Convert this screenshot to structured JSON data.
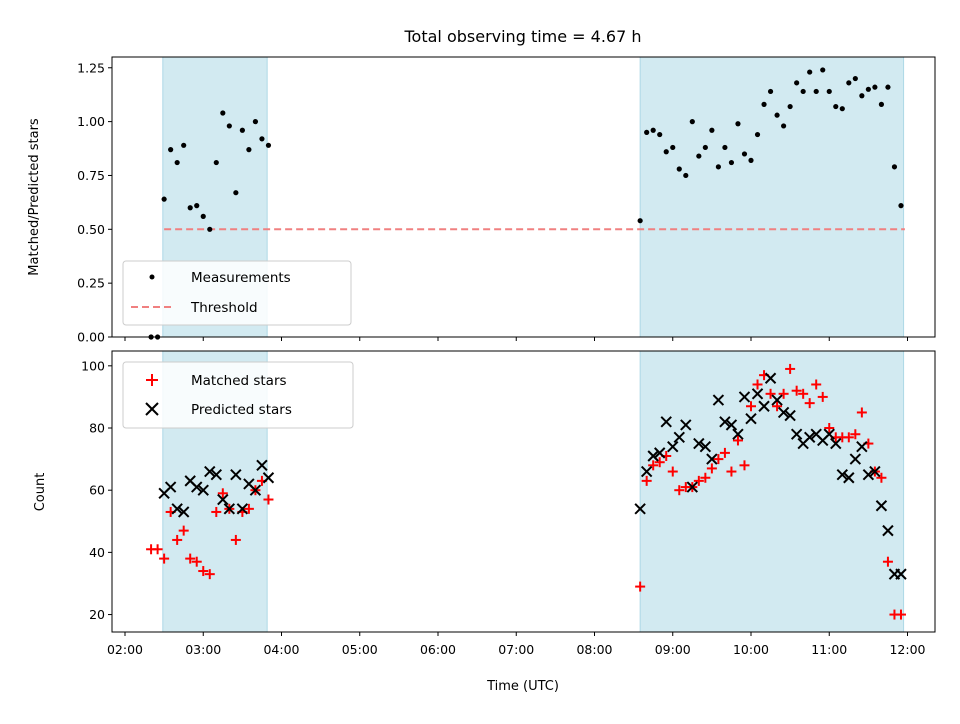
{
  "figure": {
    "title": "Total observing time = 4.67 h"
  },
  "chart_data": [
    {
      "type": "scatter",
      "panel": "top",
      "ylabel": "Matched/Predicted stars",
      "xlabel": "",
      "xlim": [
        "02:00",
        "12:00"
      ],
      "ylim": [
        0,
        1.3
      ],
      "yticks": [
        "0.00",
        "0.25",
        "0.50",
        "0.75",
        "1.00",
        "1.25"
      ],
      "legend": {
        "placement": "lower-left",
        "entries": [
          "Measurements",
          "Threshold"
        ]
      },
      "threshold": {
        "name": "Threshold",
        "value": 0.5,
        "color": "#f08080",
        "x_start": "02:30",
        "x_end": "11:58"
      },
      "shaded_spans": [
        {
          "start": "02:29",
          "end": "03:49",
          "color": "#add8e6"
        },
        {
          "start": "08:35",
          "end": "11:57",
          "color": "#add8e6"
        }
      ],
      "series": [
        {
          "name": "Measurements",
          "marker": "dot",
          "color": "#000000",
          "x": [
            "02:20",
            "02:25",
            "02:30",
            "02:35",
            "02:40",
            "02:45",
            "02:50",
            "02:55",
            "03:00",
            "03:05",
            "03:10",
            "03:15",
            "03:20",
            "03:25",
            "03:30",
            "03:35",
            "03:40",
            "03:45",
            "03:50",
            "08:35",
            "08:40",
            "08:45",
            "08:50",
            "08:55",
            "09:00",
            "09:05",
            "09:10",
            "09:15",
            "09:20",
            "09:25",
            "09:30",
            "09:35",
            "09:40",
            "09:45",
            "09:50",
            "09:55",
            "10:00",
            "10:05",
            "10:10",
            "10:15",
            "10:20",
            "10:25",
            "10:30",
            "10:35",
            "10:40",
            "10:45",
            "10:50",
            "10:55",
            "11:00",
            "11:05",
            "11:10",
            "11:15",
            "11:20",
            "11:25",
            "11:30",
            "11:35",
            "11:40",
            "11:45",
            "11:50",
            "11:55"
          ],
          "y": [
            0.0,
            0.0,
            0.64,
            0.87,
            0.81,
            0.89,
            0.6,
            0.61,
            0.56,
            0.5,
            0.81,
            1.04,
            0.98,
            0.67,
            0.96,
            0.87,
            1.0,
            0.92,
            0.89,
            0.54,
            0.95,
            0.96,
            0.94,
            0.86,
            0.88,
            0.78,
            0.75,
            1.0,
            0.84,
            0.88,
            0.96,
            0.79,
            0.88,
            0.81,
            0.99,
            0.85,
            0.82,
            0.94,
            1.08,
            1.14,
            1.03,
            0.98,
            1.07,
            1.18,
            1.14,
            1.23,
            1.14,
            1.24,
            1.14,
            1.07,
            1.06,
            1.18,
            1.2,
            1.12,
            1.15,
            1.16,
            1.08,
            1.16,
            0.79,
            0.61
          ]
        }
      ]
    },
    {
      "type": "scatter",
      "panel": "bottom",
      "ylabel": "Count",
      "xlabel": "Time (UTC)",
      "xlim": [
        "02:00",
        "12:00"
      ],
      "ylim": [
        16,
        103
      ],
      "yticks": [
        "20",
        "40",
        "60",
        "80",
        "100"
      ],
      "xticks": [
        "02:00",
        "03:00",
        "04:00",
        "05:00",
        "06:00",
        "07:00",
        "08:00",
        "09:00",
        "10:00",
        "11:00",
        "12:00"
      ],
      "legend": {
        "placement": "upper-left",
        "entries": [
          "Matched stars",
          "Predicted stars"
        ]
      },
      "shaded_spans": [
        {
          "start": "02:29",
          "end": "03:49",
          "color": "#add8e6"
        },
        {
          "start": "08:35",
          "end": "11:57",
          "color": "#add8e6"
        }
      ],
      "series": [
        {
          "name": "Matched stars",
          "marker": "plus",
          "color": "#ff0000",
          "x": [
            "02:20",
            "02:25",
            "02:30",
            "02:35",
            "02:40",
            "02:45",
            "02:50",
            "02:55",
            "03:00",
            "03:05",
            "03:10",
            "03:15",
            "03:20",
            "03:25",
            "03:30",
            "03:35",
            "03:40",
            "03:45",
            "03:50",
            "08:35",
            "08:40",
            "08:45",
            "08:50",
            "08:55",
            "09:00",
            "09:05",
            "09:10",
            "09:15",
            "09:20",
            "09:25",
            "09:30",
            "09:35",
            "09:40",
            "09:45",
            "09:50",
            "09:55",
            "10:00",
            "10:05",
            "10:10",
            "10:15",
            "10:20",
            "10:25",
            "10:30",
            "10:35",
            "10:40",
            "10:45",
            "10:50",
            "10:55",
            "11:00",
            "11:05",
            "11:10",
            "11:15",
            "11:20",
            "11:25",
            "11:30",
            "11:35",
            "11:40",
            "11:45",
            "11:50",
            "11:55"
          ],
          "y": [
            41,
            41,
            38,
            53,
            44,
            47,
            38,
            37,
            34,
            33,
            53,
            59,
            54,
            44,
            53,
            54,
            60,
            63,
            57,
            29,
            63,
            68,
            69,
            71,
            66,
            60,
            61,
            61,
            63,
            64,
            67,
            70,
            72,
            66,
            76,
            68,
            87,
            94,
            97,
            91,
            87,
            91,
            99,
            92,
            91,
            88,
            94,
            90,
            80,
            77,
            77,
            77,
            78,
            85,
            75,
            66,
            64,
            37,
            20,
            20
          ]
        },
        {
          "name": "Predicted stars",
          "marker": "x",
          "color": "#000000",
          "x": [
            "02:30",
            "02:35",
            "02:40",
            "02:45",
            "02:50",
            "02:55",
            "03:00",
            "03:05",
            "03:10",
            "03:15",
            "03:20",
            "03:25",
            "03:30",
            "03:35",
            "03:40",
            "03:45",
            "03:50",
            "08:35",
            "08:40",
            "08:45",
            "08:50",
            "08:55",
            "09:00",
            "09:05",
            "09:10",
            "09:15",
            "09:20",
            "09:25",
            "09:30",
            "09:35",
            "09:40",
            "09:45",
            "09:50",
            "09:55",
            "10:00",
            "10:05",
            "10:10",
            "10:15",
            "10:20",
            "10:25",
            "10:30",
            "10:35",
            "10:40",
            "10:45",
            "10:50",
            "10:55",
            "11:00",
            "11:05",
            "11:10",
            "11:15",
            "11:20",
            "11:25",
            "11:30",
            "11:35",
            "11:40",
            "11:45",
            "11:50",
            "11:55"
          ],
          "y": [
            59,
            61,
            54,
            53,
            63,
            61,
            60,
            66,
            65,
            57,
            54,
            65,
            54,
            62,
            60,
            68,
            64,
            54,
            66,
            71,
            72,
            82,
            74,
            77,
            81,
            61,
            75,
            74,
            70,
            89,
            82,
            81,
            78,
            90,
            83,
            91,
            87,
            96,
            89,
            85,
            84,
            78,
            75,
            77,
            78,
            76,
            78,
            75,
            65,
            64,
            70,
            74,
            65,
            66,
            55,
            47,
            33,
            33
          ]
        }
      ]
    }
  ]
}
